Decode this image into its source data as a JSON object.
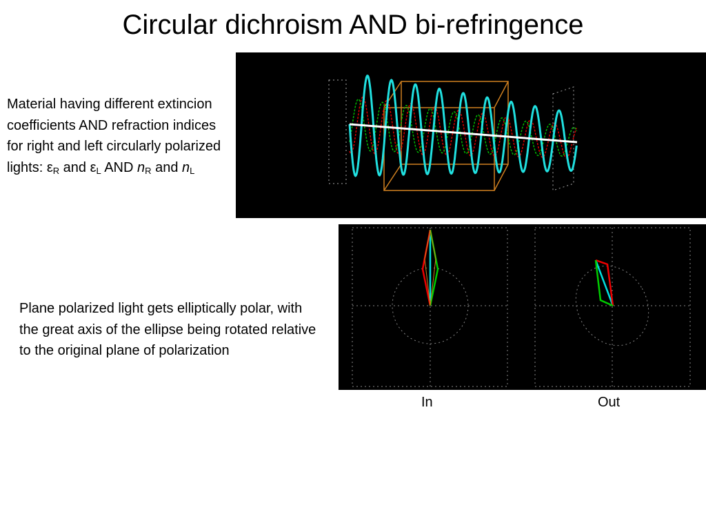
{
  "slide": {
    "title": "Circular dichroism AND bi-refringence",
    "intro": [
      "Material having different extincion coefficients AND refraction indices for right and left circularly polarized lights: ",
      "ε",
      "R",
      " and ",
      "ε",
      "L",
      " AND ",
      "n",
      "R",
      " and ",
      "n",
      "L"
    ],
    "explanation": "Plane polarized light gets elliptically polar, with the great axis of the ellipse being rotated relative to the original plane of polarization",
    "panel_labels": [
      "In",
      "Out"
    ]
  }
}
